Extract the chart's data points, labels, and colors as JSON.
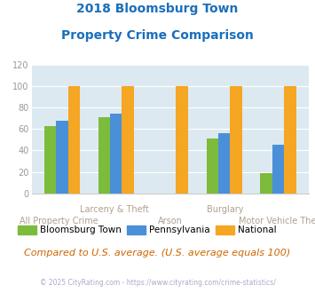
{
  "title_line1": "2018 Bloomsburg Town",
  "title_line2": "Property Crime Comparison",
  "title_color": "#1a6fbb",
  "bloomsburg": [
    63,
    71,
    0,
    51,
    19
  ],
  "pennsylvania": [
    68,
    74,
    0,
    56,
    45
  ],
  "national": [
    100,
    100,
    100,
    100,
    100
  ],
  "arson_no_green_blue": true,
  "color_bloomsburg": "#7cbb3c",
  "color_pennsylvania": "#4a90d9",
  "color_national": "#f5a623",
  "ylim": [
    0,
    120
  ],
  "yticks": [
    0,
    20,
    40,
    60,
    80,
    100,
    120
  ],
  "plot_bg": "#dce9f0",
  "upper_labels": {
    "1": "Larceny & Theft",
    "3": "Burglary"
  },
  "lower_labels": {
    "0": "All Property Crime",
    "2": "Arson",
    "4": "Motor Vehicle Theft"
  },
  "xlabel_color": "#b0a090",
  "footer": "© 2025 CityRating.com - https://www.cityrating.com/crime-statistics/",
  "footer_color": "#aaaacc",
  "note": "Compared to U.S. average. (U.S. average equals 100)",
  "note_color": "#cc6600",
  "legend_labels": [
    "Bloomsburg Town",
    "Pennsylvania",
    "National"
  ],
  "bar_width": 0.22
}
